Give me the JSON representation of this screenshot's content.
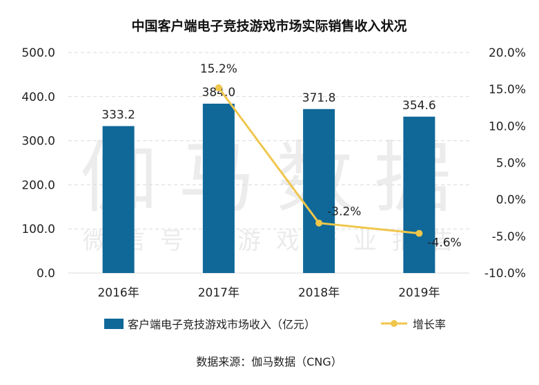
{
  "colors": {
    "bar": "#0f6898",
    "line": "#f0c64b",
    "grid": "#d9d9d9"
  },
  "watermark": {
    "brand": "伽马数据",
    "sub": "微信号：游戏产业报告"
  },
  "chart_data": {
    "type": "bar",
    "title": "中国客户端电子竞技游戏市场实际销售收入状况",
    "categories": [
      "2016年",
      "2017年",
      "2018年",
      "2019年"
    ],
    "y_left": {
      "ticks": [
        "500.0",
        "400.0",
        "300.0",
        "200.0",
        "100.0",
        "0.0"
      ],
      "lim": [
        0,
        500
      ]
    },
    "y_right": {
      "ticks": [
        "20.0%",
        "15.0%",
        "10.0%",
        "5.0%",
        "0.0%",
        "-5.0%",
        "-10.0%"
      ],
      "lim": [
        -10,
        20
      ]
    },
    "series": [
      {
        "name": "客户端电子竞技游戏市场收入（亿元）",
        "type": "bar",
        "axis": "left",
        "values": [
          333.2,
          384.0,
          371.8,
          354.6
        ],
        "labels": [
          "333.2",
          "384.0",
          "371.8",
          "354.6"
        ]
      },
      {
        "name": "增长率",
        "type": "line",
        "axis": "right",
        "values": [
          null,
          15.2,
          -3.2,
          -4.6
        ],
        "labels": [
          "",
          "15.2%",
          "-3.2%",
          "-4.6%"
        ]
      }
    ],
    "legend": "bottom",
    "source": "数据来源：伽马数据（CNG）"
  }
}
